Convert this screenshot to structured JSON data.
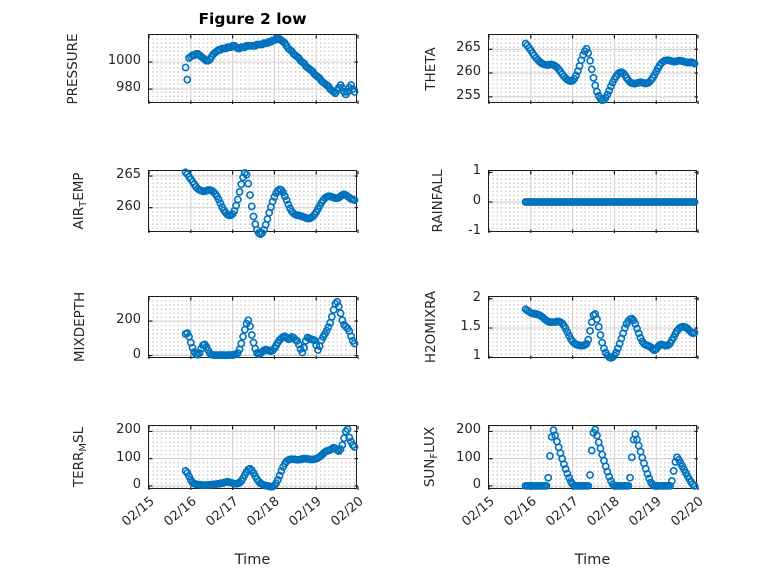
{
  "chart_data": {
    "type": "scatter",
    "figure_title": "Figure 2 low",
    "marker": "o",
    "marker_color": "#0072BD",
    "axis_color": "#1c1c1c",
    "grid_major_color": "#d2d2d2",
    "grid_minor_style": "dotted",
    "x_axis": {
      "label": "Time",
      "tick_labels": [
        "02/15",
        "02/16",
        "02/17",
        "02/18",
        "02/19",
        "02/20"
      ],
      "tick_days": [
        0,
        1,
        2,
        3,
        4,
        5
      ],
      "range_days": [
        0,
        5
      ]
    },
    "series_time": {
      "start_day": 0.875,
      "step_day": 0.0416667,
      "origin": "02/15"
    },
    "panels": [
      {
        "key": "pressure",
        "label": "PRESSURE",
        "label_parts": {
          "pre": "PRESSURE",
          "sub": "",
          "post": ""
        },
        "row": 0,
        "col": 0,
        "ylim": [
          969,
          1020
        ],
        "yticks": [
          980,
          1000
        ],
        "tick_len": 4,
        "values": [
          996,
          987,
          1003,
          1004,
          1005,
          1005,
          1006,
          1006,
          1005,
          1004,
          1003,
          1002,
          1001,
          1001,
          1002,
          1004,
          1006,
          1007,
          1008,
          1009,
          1009,
          1010,
          1010,
          1010,
          1011,
          1011,
          1011,
          1012,
          1012,
          1011,
          1010,
          1010,
          1011,
          1011,
          1011,
          1012,
          1012,
          1012,
          1012,
          1012,
          1012,
          1013,
          1013,
          1013,
          1013,
          1014,
          1014,
          1014,
          1015,
          1015,
          1016,
          1016,
          1017,
          1017,
          1017,
          1016,
          1015,
          1014,
          1012,
          1010,
          1009,
          1008,
          1006,
          1005,
          1004,
          1003,
          1001,
          1000,
          999,
          997,
          996,
          995,
          994,
          993,
          991,
          990,
          989,
          988,
          986,
          985,
          984,
          983,
          982,
          980,
          979,
          978,
          977,
          979,
          981,
          983,
          981,
          978,
          976,
          978,
          981,
          983,
          980,
          978
        ]
      },
      {
        "key": "theta",
        "label": "THETA",
        "label_parts": {
          "pre": "THETA",
          "sub": "",
          "post": ""
        },
        "row": 0,
        "col": 1,
        "ylim": [
          253.5,
          268
        ],
        "yticks": [
          255,
          260,
          265
        ],
        "tick_len": 3,
        "values": [
          266.2,
          265.8,
          265.3,
          264.8,
          264.2,
          263.7,
          263.2,
          262.8,
          262.4,
          262.1,
          261.9,
          261.8,
          261.7,
          261.7,
          261.8,
          261.8,
          261.7,
          261.5,
          261.2,
          260.8,
          260.3,
          259.8,
          259.3,
          258.9,
          258.6,
          258.4,
          258.3,
          258.4,
          258.8,
          259.5,
          260.4,
          261.5,
          262.7,
          263.8,
          264.6,
          265.1,
          264.2,
          262.6,
          260.8,
          259.0,
          257.4,
          256.1,
          255.2,
          254.6,
          254.3,
          254.4,
          254.8,
          255.5,
          256.3,
          257.2,
          258.0,
          258.7,
          259.3,
          259.8,
          260.1,
          260.2,
          260.0,
          259.6,
          259.0,
          258.5,
          258.1,
          257.9,
          257.8,
          257.8,
          257.9,
          258.0,
          258.1,
          258.0,
          257.9,
          257.8,
          257.9,
          258.1,
          258.5,
          259.0,
          259.6,
          260.3,
          261.0,
          261.6,
          262.1,
          262.4,
          262.6,
          262.7,
          262.7,
          262.6,
          262.5,
          262.4,
          262.4,
          262.5,
          262.6,
          262.6,
          262.5,
          262.4,
          262.3,
          262.2,
          262.2,
          262.3,
          262.2,
          262.0
        ]
      },
      {
        "key": "air-temp",
        "label": "AIR_TEMP",
        "label_parts": {
          "pre": "AIR",
          "sub": "T",
          "post": "EMP"
        },
        "row": 1,
        "col": 0,
        "ylim": [
          256,
          265.8
        ],
        "yticks": [
          260,
          265
        ],
        "tick_len": 3,
        "values": [
          265.6,
          265.3,
          264.9,
          264.5,
          264.1,
          263.7,
          263.3,
          263.0,
          262.8,
          262.7,
          262.6,
          262.6,
          262.7,
          262.8,
          262.8,
          262.7,
          262.5,
          262.2,
          261.8,
          261.3,
          260.7,
          260.1,
          259.6,
          259.2,
          258.9,
          258.8,
          258.8,
          259.0,
          259.5,
          260.3,
          261.3,
          262.5,
          263.7,
          264.8,
          265.5,
          265.2,
          263.8,
          262.0,
          260.2,
          258.6,
          257.4,
          256.5,
          256.0,
          255.8,
          256.0,
          256.5,
          257.3,
          258.2,
          259.2,
          260.1,
          261.0,
          261.7,
          262.3,
          262.7,
          262.9,
          262.8,
          262.4,
          261.8,
          261.2,
          260.5,
          259.9,
          259.4,
          259.1,
          258.9,
          258.8,
          258.8,
          258.7,
          258.6,
          258.5,
          258.4,
          258.3,
          258.3,
          258.4,
          258.6,
          258.9,
          259.3,
          259.8,
          260.3,
          260.8,
          261.2,
          261.5,
          261.7,
          261.8,
          261.8,
          261.7,
          261.6,
          261.5,
          261.5,
          261.6,
          261.8,
          262.0,
          262.1,
          262.0,
          261.8,
          261.6,
          261.4,
          261.3,
          261.2
        ]
      },
      {
        "key": "rainfall",
        "label": "RAINFALL",
        "label_parts": {
          "pre": "RAINFALL",
          "sub": "",
          "post": ""
        },
        "row": 1,
        "col": 1,
        "ylim": [
          -1.05,
          1.05
        ],
        "yticks": [
          -1,
          0,
          1
        ],
        "tick_len": 2,
        "values": [
          0,
          0,
          0,
          0,
          0,
          0,
          0,
          0,
          0,
          0,
          0,
          0,
          0,
          0,
          0,
          0,
          0,
          0,
          0,
          0,
          0,
          0,
          0,
          0,
          0,
          0,
          0,
          0,
          0,
          0,
          0,
          0,
          0,
          0,
          0,
          0,
          0,
          0,
          0,
          0,
          0,
          0,
          0,
          0,
          0,
          0,
          0,
          0,
          0,
          0,
          0,
          0,
          0,
          0,
          0,
          0,
          0,
          0,
          0,
          0,
          0,
          0,
          0,
          0,
          0,
          0,
          0,
          0,
          0,
          0,
          0,
          0,
          0,
          0,
          0,
          0,
          0,
          0,
          0,
          0,
          0,
          0,
          0,
          0,
          0,
          0,
          0,
          0,
          0,
          0,
          0,
          0,
          0,
          0,
          0,
          0,
          0,
          0
        ]
      },
      {
        "key": "mixdepth",
        "label": "MIXDEPTH",
        "label_parts": {
          "pre": "MIXDEPTH",
          "sub": "",
          "post": ""
        },
        "row": 2,
        "col": 0,
        "ylim": [
          -20,
          340
        ],
        "yticks": [
          0,
          200
        ],
        "tick_len": 3,
        "values": [
          125,
          130,
          110,
          75,
          45,
          20,
          8,
          5,
          15,
          40,
          60,
          65,
          50,
          30,
          12,
          5,
          3,
          2,
          2,
          2,
          3,
          3,
          2,
          2,
          2,
          3,
          3,
          4,
          5,
          8,
          15,
          35,
          70,
          110,
          150,
          185,
          205,
          170,
          120,
          75,
          40,
          15,
          8,
          12,
          22,
          30,
          35,
          32,
          28,
          25,
          30,
          42,
          58,
          75,
          90,
          100,
          108,
          112,
          105,
          95,
          98,
          108,
          103,
          92,
          85,
          65,
          38,
          18,
          45,
          85,
          105,
          100,
          95,
          92,
          88,
          60,
          32,
          55,
          88,
          108,
          125,
          145,
          165,
          190,
          225,
          265,
          300,
          312,
          285,
          245,
          205,
          178,
          168,
          158,
          142,
          112,
          85,
          70
        ]
      },
      {
        "key": "h2omixra",
        "label": "H2OMIXRA",
        "label_parts": {
          "pre": "H2OMIXRA",
          "sub": "",
          "post": ""
        },
        "row": 2,
        "col": 1,
        "ylim": [
          0.97,
          2.03
        ],
        "yticks": [
          1,
          1.5,
          2
        ],
        "tick_len": 3,
        "values": [
          1.82,
          1.8,
          1.78,
          1.76,
          1.75,
          1.74,
          1.74,
          1.73,
          1.72,
          1.7,
          1.68,
          1.65,
          1.63,
          1.61,
          1.6,
          1.6,
          1.6,
          1.6,
          1.61,
          1.61,
          1.6,
          1.58,
          1.54,
          1.49,
          1.43,
          1.37,
          1.31,
          1.27,
          1.24,
          1.22,
          1.21,
          1.2,
          1.2,
          1.2,
          1.21,
          1.23,
          1.3,
          1.45,
          1.6,
          1.72,
          1.74,
          1.65,
          1.52,
          1.38,
          1.25,
          1.15,
          1.08,
          1.03,
          1.0,
          0.99,
          1.0,
          1.03,
          1.08,
          1.15,
          1.23,
          1.32,
          1.41,
          1.5,
          1.57,
          1.62,
          1.65,
          1.66,
          1.63,
          1.57,
          1.49,
          1.41,
          1.33,
          1.27,
          1.23,
          1.21,
          1.2,
          1.19,
          1.17,
          1.14,
          1.12,
          1.14,
          1.18,
          1.21,
          1.22,
          1.21,
          1.2,
          1.2,
          1.21,
          1.24,
          1.29,
          1.34,
          1.4,
          1.45,
          1.49,
          1.51,
          1.52,
          1.52,
          1.51,
          1.49,
          1.46,
          1.43,
          1.41,
          1.42
        ]
      },
      {
        "key": "terr-msl",
        "label": "TERR_MSL",
        "label_parts": {
          "pre": "TERR",
          "sub": "M",
          "post": "SL"
        },
        "row": 3,
        "col": 0,
        "ylim": [
          -15,
          220
        ],
        "yticks": [
          0,
          100,
          200
        ],
        "tick_len": 3,
        "values": [
          55,
          48,
          35,
          22,
          12,
          8,
          6,
          5,
          4,
          4,
          3,
          3,
          3,
          4,
          4,
          5,
          5,
          6,
          7,
          8,
          9,
          10,
          12,
          14,
          15,
          14,
          12,
          10,
          8,
          8,
          9,
          12,
          18,
          28,
          40,
          52,
          60,
          63,
          58,
          48,
          36,
          25,
          16,
          10,
          6,
          3,
          1,
          0,
          -2,
          -3,
          -2,
          2,
          10,
          22,
          38,
          55,
          70,
          82,
          90,
          95,
          97,
          98,
          98,
          97,
          96,
          96,
          97,
          99,
          100,
          100,
          99,
          98,
          97,
          97,
          98,
          100,
          103,
          107,
          112,
          118,
          124,
          128,
          130,
          132,
          136,
          140,
          138,
          132,
          128,
          135,
          150,
          175,
          200,
          208,
          178,
          162,
          150,
          143
        ]
      },
      {
        "key": "sun-flux",
        "label": "SUN_FLUX",
        "label_parts": {
          "pre": "SUN",
          "sub": "F",
          "post": "LUX"
        },
        "row": 3,
        "col": 1,
        "ylim": [
          -15,
          220
        ],
        "yticks": [
          0,
          100,
          200
        ],
        "tick_len": 3,
        "values": [
          0,
          0,
          0,
          0,
          0,
          0,
          0,
          0,
          0,
          0,
          0,
          0,
          0,
          30,
          110,
          180,
          205,
          185,
          163,
          142,
          120,
          100,
          80,
          62,
          45,
          30,
          16,
          6,
          0,
          0,
          0,
          0,
          0,
          0,
          0,
          0,
          0,
          40,
          130,
          195,
          207,
          185,
          160,
          138,
          115,
          93,
          72,
          52,
          34,
          18,
          6,
          0,
          0,
          0,
          0,
          0,
          0,
          0,
          0,
          0,
          30,
          105,
          170,
          190,
          170,
          148,
          126,
          104,
          83,
          63,
          44,
          27,
          13,
          4,
          0,
          0,
          0,
          0,
          0,
          0,
          0,
          0,
          0,
          0,
          18,
          55,
          88,
          105,
          96,
          84,
          72,
          60,
          48,
          36,
          25,
          14,
          6,
          0
        ]
      }
    ]
  }
}
